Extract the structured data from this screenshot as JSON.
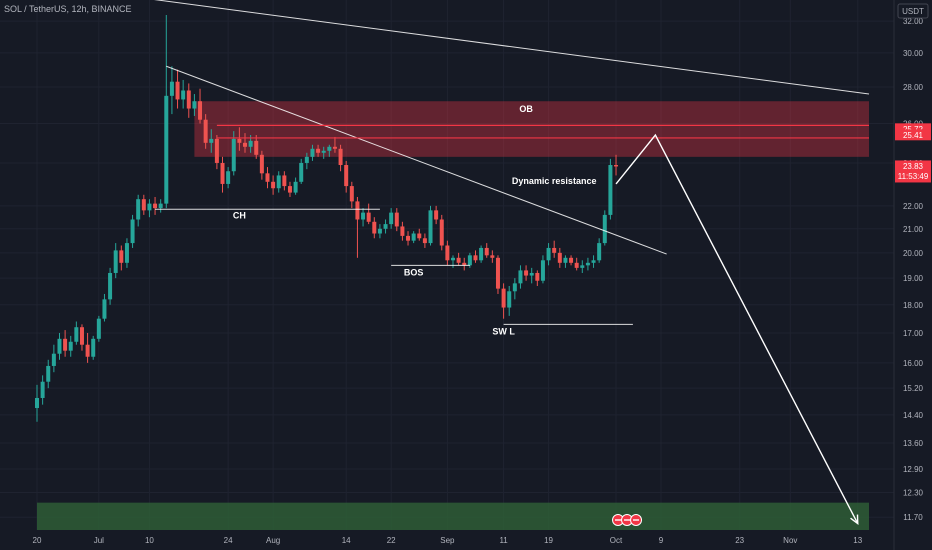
{
  "header": {
    "title": "SOL / TetherUS, 12h, BINANCE",
    "currency": "USDT"
  },
  "colors": {
    "bg": "#161a25",
    "up": "#26a69a",
    "down": "#ef5350",
    "ob": "#f23645",
    "green_zone": "#2e5d36",
    "line": "#ffffff"
  },
  "chart_data": {
    "type": "candlestick",
    "title": "SOL / TetherUS, 12h, BINANCE",
    "y_unit": "USDT",
    "y_scale": "log",
    "ylim": [
      11.4,
      33.4
    ],
    "y_ticks": [
      "32.00",
      "30.00",
      "28.00",
      "26.00",
      "24.00",
      "22.00",
      "21.00",
      "20.00",
      "19.00",
      "18.00",
      "17.00",
      "16.00",
      "15.20",
      "14.40",
      "13.60",
      "12.90",
      "12.30",
      "11.70"
    ],
    "x_ticks": [
      "20",
      "Jul",
      "10",
      "24",
      "Aug",
      "14",
      "22",
      "Sep",
      "11",
      "19",
      "Oct",
      "9",
      "23",
      "Nov",
      "13"
    ],
    "x_range": [
      "2023-06-20",
      "2023-11-15"
    ],
    "last_price": "23.83",
    "countdown": "11:53:49",
    "price_tags": [
      {
        "value": "25.72",
        "color": "#f23645"
      },
      {
        "value": "25.41",
        "color": "#f23645"
      },
      {
        "value": "23.83",
        "color": "#f23645"
      }
    ],
    "zones": [
      {
        "label": "OB",
        "low": 24.3,
        "high": 27.2,
        "from": "2023-07-18",
        "to": "2023-11-15"
      },
      {
        "label": "",
        "low": 11.4,
        "high": 12.05,
        "from": "2023-06-20",
        "to": "2023-11-15"
      }
    ],
    "annotations": [
      {
        "label": "Dynamic resistance",
        "date": "2023-09-20",
        "price": 23.0
      },
      {
        "label": "CH",
        "date": "2023-07-26",
        "price": 21.45
      },
      {
        "label": "BOS",
        "date": "2023-08-26",
        "price": 19.1
      },
      {
        "label": "SW L",
        "date": "2023-09-11",
        "price": 16.95
      },
      {
        "label": "OB",
        "date": "2023-09-15",
        "price": 26.6
      }
    ],
    "lines": [
      {
        "from": [
          "2023-06-20",
          34.5
        ],
        "to": [
          "2023-11-15",
          27.6
        ]
      },
      {
        "from": [
          "2023-07-13",
          29.2
        ],
        "to": [
          "2023-10-10",
          19.95
        ]
      },
      {
        "from": [
          "2023-07-11",
          21.85
        ],
        "to": [
          "2023-08-20",
          21.85
        ]
      },
      {
        "from": [
          "2023-08-22",
          19.5
        ],
        "to": [
          "2023-09-05",
          19.5
        ]
      },
      {
        "from": [
          "2023-09-11",
          17.3
        ],
        "to": [
          "2023-10-04",
          17.3
        ]
      },
      {
        "from": [
          "2023-07-22",
          25.9
        ],
        "to": [
          "2023-11-15",
          25.9
        ]
      },
      {
        "from": [
          "2023-07-22",
          25.25
        ],
        "to": [
          "2023-11-15",
          25.25
        ]
      }
    ],
    "arrow_path": [
      [
        "2023-10-01",
        23.0
      ],
      [
        "2023-10-08",
        25.4
      ],
      [
        "2023-11-13",
        11.55
      ]
    ],
    "series": [
      {
        "name": "SOLUSDT",
        "ohlc": [
          [
            "2023-06-20",
            14.6,
            15.3,
            14.2,
            14.9
          ],
          [
            "2023-06-21",
            14.9,
            15.6,
            14.7,
            15.4
          ],
          [
            "2023-06-22",
            15.4,
            16.1,
            15.2,
            15.9
          ],
          [
            "2023-06-23",
            15.9,
            16.6,
            15.7,
            16.3
          ],
          [
            "2023-06-24",
            16.3,
            17.0,
            16.1,
            16.8
          ],
          [
            "2023-06-25",
            16.8,
            17.1,
            16.2,
            16.4
          ],
          [
            "2023-06-26",
            16.4,
            16.9,
            16.2,
            16.7
          ],
          [
            "2023-06-27",
            16.7,
            17.4,
            16.6,
            17.2
          ],
          [
            "2023-06-28",
            17.2,
            17.3,
            16.4,
            16.6
          ],
          [
            "2023-06-29",
            16.6,
            17.0,
            16.0,
            16.2
          ],
          [
            "2023-06-30",
            16.2,
            16.9,
            16.1,
            16.8
          ],
          [
            "2023-07-01",
            16.8,
            17.6,
            16.7,
            17.5
          ],
          [
            "2023-07-02",
            17.5,
            18.4,
            17.4,
            18.2
          ],
          [
            "2023-07-03",
            18.2,
            19.4,
            18.0,
            19.2
          ],
          [
            "2023-07-04",
            19.2,
            20.4,
            19.0,
            20.1
          ],
          [
            "2023-07-05",
            20.1,
            20.3,
            19.3,
            19.6
          ],
          [
            "2023-07-06",
            19.6,
            20.6,
            19.4,
            20.4
          ],
          [
            "2023-07-07",
            20.4,
            21.6,
            20.2,
            21.4
          ],
          [
            "2023-07-08",
            21.4,
            22.5,
            21.1,
            22.3
          ],
          [
            "2023-07-09",
            22.3,
            22.5,
            21.6,
            21.8
          ],
          [
            "2023-07-10",
            21.8,
            22.3,
            21.5,
            22.1
          ],
          [
            "2023-07-11",
            22.1,
            22.4,
            21.6,
            21.9
          ],
          [
            "2023-07-12",
            21.9,
            22.3,
            21.7,
            22.1
          ],
          [
            "2023-07-13",
            22.1,
            32.4,
            21.9,
            27.5
          ],
          [
            "2023-07-14",
            27.5,
            29.2,
            26.5,
            28.3
          ],
          [
            "2023-07-15",
            28.3,
            29.0,
            26.8,
            27.3
          ],
          [
            "2023-07-16",
            27.3,
            28.4,
            26.8,
            27.8
          ],
          [
            "2023-07-17",
            27.8,
            28.2,
            26.3,
            26.8
          ],
          [
            "2023-07-18",
            26.8,
            27.6,
            26.4,
            27.2
          ],
          [
            "2023-07-19",
            27.2,
            27.9,
            26.0,
            26.2
          ],
          [
            "2023-07-20",
            26.2,
            26.5,
            24.7,
            25.0
          ],
          [
            "2023-07-21",
            25.0,
            25.7,
            24.5,
            25.2
          ],
          [
            "2023-07-22",
            25.2,
            25.4,
            23.7,
            24.0
          ],
          [
            "2023-07-23",
            24.0,
            24.3,
            22.6,
            23.0
          ],
          [
            "2023-07-24",
            23.0,
            23.8,
            22.8,
            23.6
          ],
          [
            "2023-07-25",
            23.6,
            25.6,
            23.4,
            25.2
          ],
          [
            "2023-07-26",
            25.2,
            25.8,
            24.6,
            25.0
          ],
          [
            "2023-07-27",
            25.0,
            25.5,
            24.5,
            24.8
          ],
          [
            "2023-07-28",
            24.8,
            25.4,
            24.5,
            25.1
          ],
          [
            "2023-07-29",
            25.1,
            25.4,
            24.2,
            24.4
          ],
          [
            "2023-07-30",
            24.4,
            24.6,
            23.2,
            23.5
          ],
          [
            "2023-07-31",
            23.5,
            23.8,
            22.8,
            23.1
          ],
          [
            "2023-08-01",
            23.1,
            23.4,
            22.5,
            22.8
          ],
          [
            "2023-08-02",
            22.8,
            23.6,
            22.6,
            23.4
          ],
          [
            "2023-08-03",
            23.4,
            23.6,
            22.7,
            22.9
          ],
          [
            "2023-08-04",
            22.9,
            23.1,
            22.4,
            22.6
          ],
          [
            "2023-08-05",
            22.6,
            23.3,
            22.5,
            23.1
          ],
          [
            "2023-08-06",
            23.1,
            24.2,
            23.0,
            24.0
          ],
          [
            "2023-08-07",
            24.0,
            24.5,
            23.7,
            24.3
          ],
          [
            "2023-08-08",
            24.3,
            24.9,
            24.1,
            24.7
          ],
          [
            "2023-08-09",
            24.7,
            24.9,
            24.3,
            24.5
          ],
          [
            "2023-08-10",
            24.5,
            24.8,
            24.2,
            24.6
          ],
          [
            "2023-08-11",
            24.6,
            24.9,
            24.3,
            24.8
          ],
          [
            "2023-08-12",
            24.8,
            25.3,
            24.5,
            24.7
          ],
          [
            "2023-08-13",
            24.7,
            24.9,
            23.6,
            23.9
          ],
          [
            "2023-08-14",
            23.9,
            24.1,
            22.6,
            22.9
          ],
          [
            "2023-08-15",
            22.9,
            23.1,
            21.9,
            22.2
          ],
          [
            "2023-08-16",
            22.2,
            22.4,
            19.8,
            21.4
          ],
          [
            "2023-08-17",
            21.4,
            21.9,
            21.1,
            21.7
          ],
          [
            "2023-08-18",
            21.7,
            22.1,
            21.2,
            21.3
          ],
          [
            "2023-08-19",
            21.3,
            21.5,
            20.6,
            20.8
          ],
          [
            "2023-08-20",
            20.8,
            21.2,
            20.6,
            21.0
          ],
          [
            "2023-08-21",
            21.0,
            21.4,
            20.8,
            21.2
          ],
          [
            "2023-08-22",
            21.2,
            21.9,
            21.0,
            21.7
          ],
          [
            "2023-08-23",
            21.7,
            21.9,
            20.9,
            21.1
          ],
          [
            "2023-08-24",
            21.1,
            21.3,
            20.5,
            20.7
          ],
          [
            "2023-08-25",
            20.7,
            20.9,
            20.3,
            20.5
          ],
          [
            "2023-08-26",
            20.5,
            20.9,
            20.4,
            20.8
          ],
          [
            "2023-08-27",
            20.8,
            21.0,
            20.5,
            20.6
          ],
          [
            "2023-08-28",
            20.6,
            20.8,
            20.2,
            20.4
          ],
          [
            "2023-08-29",
            20.4,
            22.0,
            20.3,
            21.8
          ],
          [
            "2023-08-30",
            21.8,
            22.0,
            21.2,
            21.4
          ],
          [
            "2023-08-31",
            21.4,
            21.6,
            20.1,
            20.3
          ],
          [
            "2023-09-01",
            20.3,
            20.5,
            19.5,
            19.7
          ],
          [
            "2023-09-02",
            19.7,
            19.9,
            19.4,
            19.8
          ],
          [
            "2023-09-03",
            19.8,
            20.0,
            19.5,
            19.6
          ],
          [
            "2023-09-04",
            19.6,
            19.8,
            19.3,
            19.5
          ],
          [
            "2023-09-05",
            19.5,
            20.0,
            19.4,
            19.9
          ],
          [
            "2023-09-06",
            19.9,
            20.1,
            19.6,
            19.7
          ],
          [
            "2023-09-07",
            19.7,
            20.3,
            19.6,
            20.2
          ],
          [
            "2023-09-08",
            20.2,
            20.4,
            19.8,
            19.9
          ],
          [
            "2023-09-09",
            19.9,
            20.1,
            19.6,
            19.8
          ],
          [
            "2023-09-10",
            19.8,
            19.9,
            18.4,
            18.6
          ],
          [
            "2023-09-11",
            18.6,
            18.8,
            17.5,
            17.9
          ],
          [
            "2023-09-12",
            17.9,
            18.7,
            17.6,
            18.5
          ],
          [
            "2023-09-13",
            18.5,
            19.0,
            18.2,
            18.8
          ],
          [
            "2023-09-14",
            18.8,
            19.5,
            18.6,
            19.3
          ],
          [
            "2023-09-15",
            19.3,
            19.5,
            18.9,
            19.1
          ],
          [
            "2023-09-16",
            19.1,
            19.4,
            18.8,
            19.2
          ],
          [
            "2023-09-17",
            19.2,
            19.3,
            18.7,
            18.9
          ],
          [
            "2023-09-18",
            18.9,
            19.9,
            18.8,
            19.7
          ],
          [
            "2023-09-19",
            19.7,
            20.4,
            19.5,
            20.2
          ],
          [
            "2023-09-20",
            20.2,
            20.5,
            19.8,
            20.0
          ],
          [
            "2023-09-21",
            20.0,
            20.2,
            19.4,
            19.6
          ],
          [
            "2023-09-22",
            19.6,
            19.9,
            19.4,
            19.8
          ],
          [
            "2023-09-23",
            19.8,
            19.9,
            19.5,
            19.6
          ],
          [
            "2023-09-24",
            19.6,
            19.8,
            19.3,
            19.4
          ],
          [
            "2023-09-25",
            19.4,
            19.7,
            19.2,
            19.5
          ],
          [
            "2023-09-26",
            19.5,
            19.8,
            19.3,
            19.6
          ],
          [
            "2023-09-27",
            19.6,
            19.9,
            19.4,
            19.7
          ],
          [
            "2023-09-28",
            19.7,
            20.6,
            19.6,
            20.4
          ],
          [
            "2023-09-29",
            20.4,
            21.8,
            20.3,
            21.6
          ],
          [
            "2023-09-30",
            21.6,
            24.2,
            21.4,
            23.9
          ],
          [
            "2023-10-01",
            23.9,
            24.4,
            23.4,
            23.83
          ]
        ]
      }
    ]
  }
}
